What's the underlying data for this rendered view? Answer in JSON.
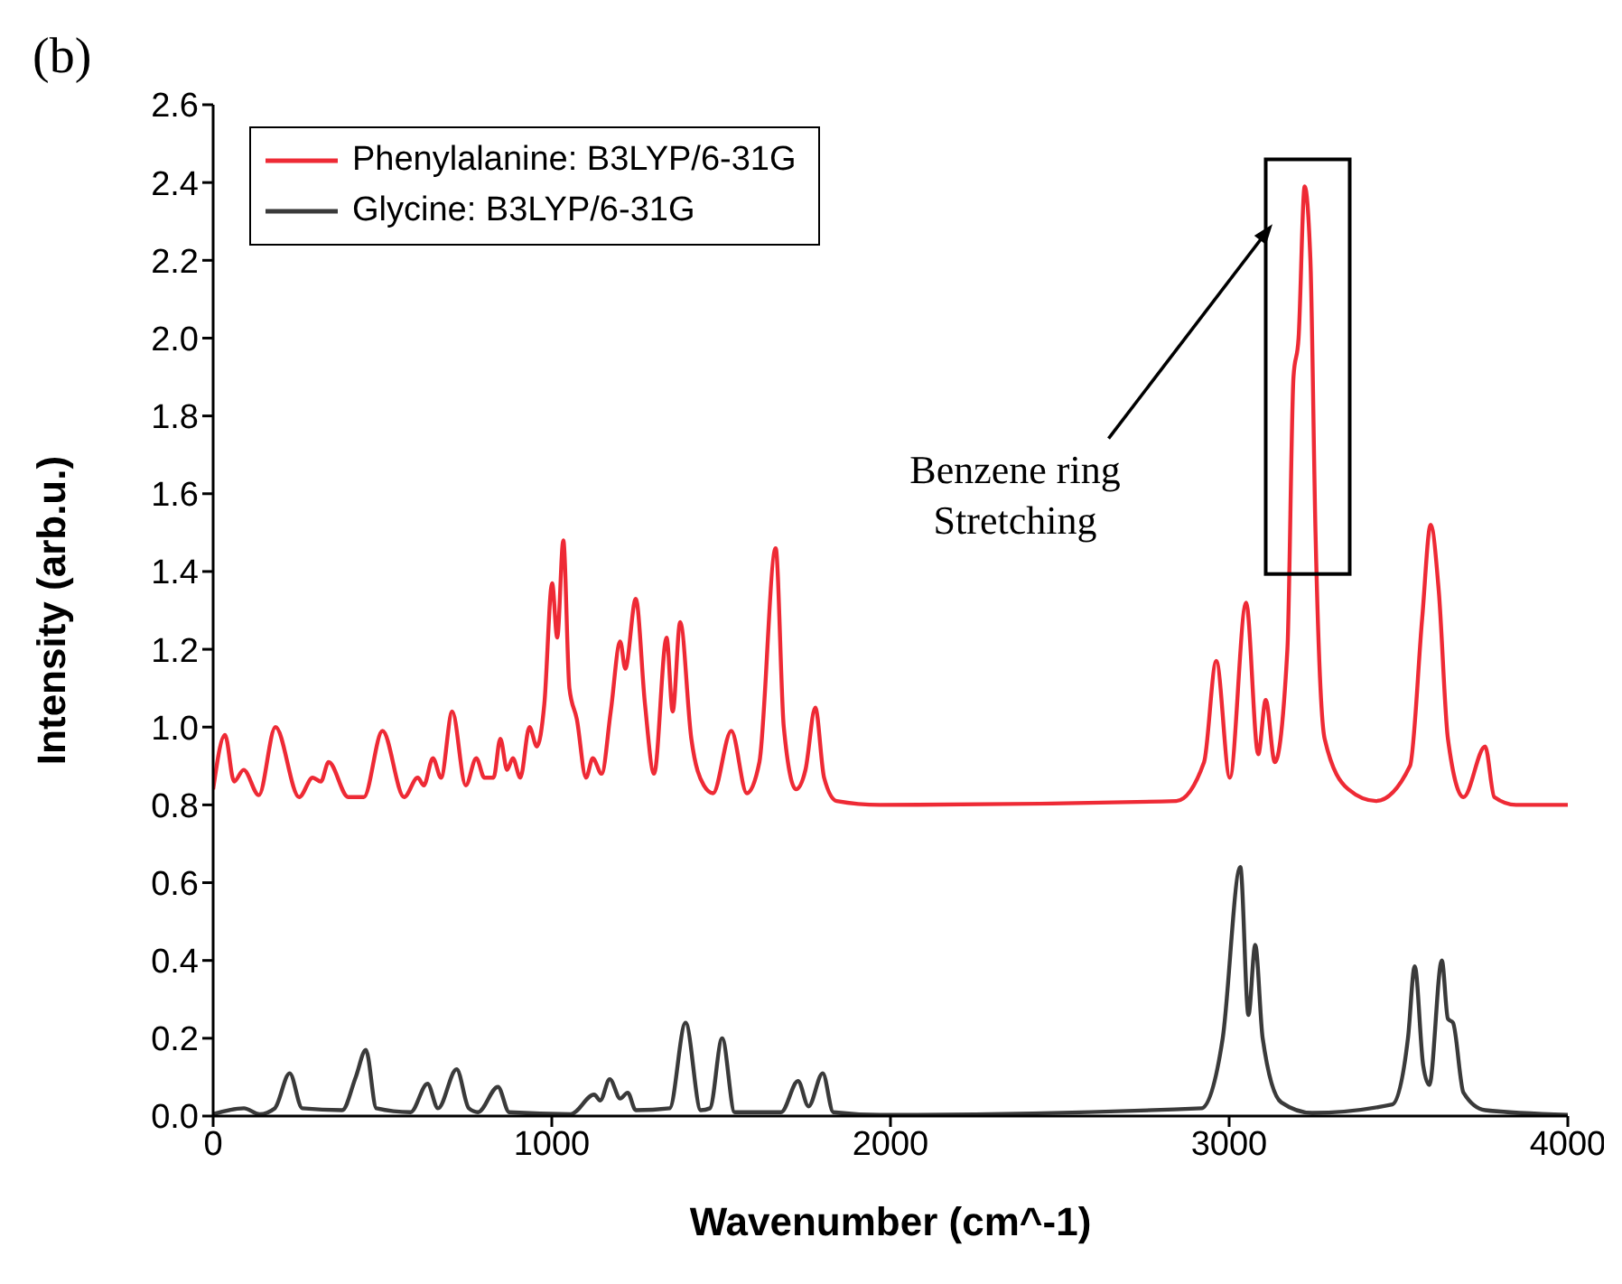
{
  "chart_data": {
    "type": "line",
    "title": "(b)",
    "xlabel": "Wavenumber (cm^-1)",
    "ylabel": "Intensity (arb.u.)",
    "xlim": [
      0,
      4000
    ],
    "xticks": [
      0,
      1000,
      2000,
      3000,
      4000
    ],
    "ylim": [
      0,
      2.6
    ],
    "yticks": [
      {
        "value": 0,
        "label": "0.0"
      },
      {
        "value": 0.2,
        "label": "0.2"
      },
      {
        "value": 0.4,
        "label": "0.4"
      },
      {
        "value": 0.6,
        "label": "0.6"
      },
      {
        "value": 0.8,
        "label": "0.8"
      },
      {
        "value": 1,
        "label": "1.0"
      },
      {
        "value": 1.2,
        "label": "1.2"
      },
      {
        "value": 1.4,
        "label": "1.4"
      },
      {
        "value": 1.6,
        "label": "1.6"
      },
      {
        "value": 1.8,
        "label": "1.8"
      },
      {
        "value": 2,
        "label": "2.0"
      },
      {
        "value": 2.2,
        "label": "2.2"
      },
      {
        "value": 2.4,
        "label": "2.4"
      },
      {
        "value": 2.6,
        "label": "2.6"
      }
    ],
    "grid": false,
    "legend": "top left",
    "marker": "none",
    "line_style": "solid",
    "annotations": [
      "Benzene ring\nStretching"
    ],
    "series": [
      {
        "name": "Phenylalanine: B3LYP/6-31G",
        "color": "#ee2a35",
        "x": [
          0,
          35,
          62,
          90,
          135,
          184,
          254,
          294,
          318,
          341,
          399,
          445,
          500,
          564,
          604,
          622,
          649,
          673,
          706,
          746,
          777,
          801,
          828,
          848,
          868,
          885,
          907,
          934,
          956,
          978,
          1001,
          1016,
          1034,
          1052,
          1074,
          1101,
          1121,
          1147,
          1174,
          1202,
          1217,
          1248,
          1275,
          1302,
          1339,
          1357,
          1379,
          1412,
          1449,
          1476,
          1530,
          1576,
          1613,
          1661,
          1685,
          1721,
          1749,
          1778,
          1804,
          1841,
          1969,
          2844,
          2926,
          2962,
          3002,
          3050,
          3086,
          3108,
          3135,
          3172,
          3190,
          3205,
          3223,
          3240,
          3255,
          3282,
          3352,
          3434,
          3534,
          3570,
          3595,
          3619,
          3646,
          3692,
          3756,
          3783,
          3847,
          4000
        ],
        "values": [
          0.84,
          0.98,
          0.86,
          0.89,
          0.825,
          1.0,
          0.82,
          0.87,
          0.86,
          0.91,
          0.82,
          0.82,
          0.99,
          0.82,
          0.87,
          0.85,
          0.92,
          0.87,
          1.04,
          0.85,
          0.92,
          0.87,
          0.87,
          0.97,
          0.89,
          0.92,
          0.87,
          1.0,
          0.95,
          1.06,
          1.37,
          1.23,
          1.48,
          1.1,
          1.02,
          0.87,
          0.92,
          0.88,
          1.04,
          1.22,
          1.15,
          1.33,
          1.06,
          0.88,
          1.23,
          1.04,
          1.27,
          0.97,
          0.85,
          0.83,
          0.99,
          0.83,
          0.91,
          1.46,
          1.0,
          0.84,
          0.89,
          1.05,
          0.87,
          0.81,
          0.8,
          0.81,
          0.91,
          1.17,
          0.87,
          1.32,
          0.93,
          1.07,
          0.91,
          1.2,
          1.9,
          2.0,
          2.39,
          2.2,
          1.5,
          0.97,
          0.84,
          0.81,
          0.9,
          1.28,
          1.52,
          1.35,
          0.97,
          0.82,
          0.95,
          0.82,
          0.8,
          0.8
        ]
      },
      {
        "name": "Glycine: B3LYP/6-31G",
        "color": "#3a3a3a",
        "x": [
          0,
          91,
          137,
          182,
          226,
          263,
          381,
          421,
          451,
          482,
          583,
          633,
          664,
          719,
          755,
          782,
          841,
          874,
          1056,
          1125,
          1143,
          1171,
          1202,
          1224,
          1248,
          1348,
          1395,
          1440,
          1467,
          1503,
          1540,
          1677,
          1727,
          1758,
          1800,
          1831,
          1969,
          2918,
          2981,
          3033,
          3057,
          3077,
          3099,
          3154,
          3245,
          3482,
          3528,
          3548,
          3573,
          3591,
          3628,
          3646,
          3661,
          3692,
          3756,
          4000
        ],
        "values": [
          0.005,
          0.02,
          0.005,
          0.02,
          0.11,
          0.02,
          0.015,
          0.1,
          0.17,
          0.02,
          0.01,
          0.083,
          0.02,
          0.12,
          0.02,
          0.01,
          0.075,
          0.01,
          0.005,
          0.055,
          0.04,
          0.095,
          0.045,
          0.06,
          0.015,
          0.02,
          0.24,
          0.015,
          0.02,
          0.2,
          0.01,
          0.01,
          0.09,
          0.025,
          0.11,
          0.01,
          0.003,
          0.02,
          0.2,
          0.64,
          0.26,
          0.44,
          0.2,
          0.035,
          0.008,
          0.03,
          0.2,
          0.385,
          0.13,
          0.08,
          0.4,
          0.25,
          0.24,
          0.06,
          0.015,
          0.003
        ]
      }
    ]
  }
}
